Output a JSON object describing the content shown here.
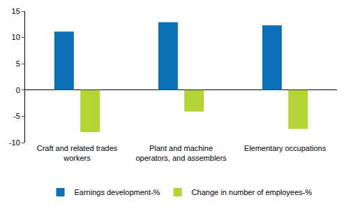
{
  "chart_data": {
    "type": "bar",
    "categories": [
      "Craft and related trades workers",
      "Plant and machine operators, and assemblers",
      "Elementary occupations"
    ],
    "series": [
      {
        "name": "Earnings development-%",
        "color": "#0a6fb4",
        "values": [
          11.1,
          12.9,
          12.3
        ]
      },
      {
        "name": "Change in number of employees-%",
        "color": "#b4d335",
        "values": [
          -8.0,
          -4.1,
          -7.4
        ]
      }
    ],
    "ylim": [
      -10,
      15
    ],
    "yticks": [
      -10,
      -5,
      0,
      5,
      10,
      15
    ],
    "grid": false,
    "legend": "bottom"
  }
}
